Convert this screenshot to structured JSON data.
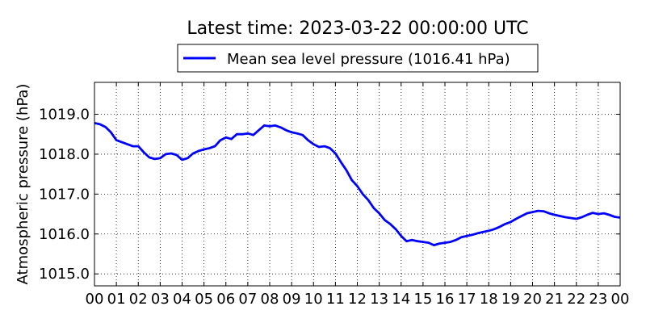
{
  "chart_data": {
    "type": "line",
    "title": "Latest time: 2023-03-22 00:00:00 UTC",
    "ylabel": "Atmospheric pressure (hPa)",
    "xlabel": "",
    "xlim": [
      0,
      24
    ],
    "ylim": [
      1014.7,
      1019.8
    ],
    "grid": true,
    "legend_position": "top-center",
    "x_tick_labels": [
      "00",
      "01",
      "02",
      "03",
      "04",
      "05",
      "06",
      "07",
      "08",
      "09",
      "10",
      "11",
      "12",
      "13",
      "14",
      "15",
      "16",
      "17",
      "18",
      "19",
      "20",
      "21",
      "22",
      "23",
      "00"
    ],
    "y_ticks": [
      1015.0,
      1016.0,
      1017.0,
      1018.0,
      1019.0
    ],
    "y_tick_labels": [
      "1015.0",
      "1016.0",
      "1017.0",
      "1018.0",
      "1019.0"
    ],
    "series": [
      {
        "name": "Mean sea level pressure (1016.41 hPa)",
        "color": "#0000ff",
        "x": [
          0,
          0.25,
          0.5,
          0.75,
          1,
          1.25,
          1.5,
          1.75,
          2,
          2.25,
          2.5,
          2.75,
          3,
          3.25,
          3.5,
          3.75,
          4,
          4.25,
          4.5,
          4.75,
          5,
          5.25,
          5.5,
          5.75,
          6,
          6.25,
          6.5,
          6.75,
          7,
          7.25,
          7.5,
          7.75,
          8,
          8.25,
          8.5,
          8.75,
          9,
          9.25,
          9.5,
          9.75,
          10,
          10.25,
          10.5,
          10.75,
          11,
          11.25,
          11.5,
          11.75,
          12,
          12.25,
          12.5,
          12.75,
          13,
          13.25,
          13.5,
          13.75,
          14,
          14.25,
          14.5,
          14.75,
          15,
          15.25,
          15.5,
          15.75,
          16,
          16.25,
          16.5,
          16.75,
          17,
          17.25,
          17.5,
          17.75,
          18,
          18.25,
          18.5,
          18.75,
          19,
          19.25,
          19.5,
          19.75,
          20,
          20.25,
          20.5,
          20.75,
          21,
          21.25,
          21.5,
          21.75,
          22,
          22.25,
          22.5,
          22.75,
          23,
          23.25,
          23.5,
          23.75,
          24
        ],
        "values": [
          1018.78,
          1018.75,
          1018.68,
          1018.55,
          1018.35,
          1018.3,
          1018.25,
          1018.2,
          1018.2,
          1018.05,
          1017.92,
          1017.88,
          1017.9,
          1018.0,
          1018.02,
          1017.98,
          1017.86,
          1017.9,
          1018.02,
          1018.08,
          1018.12,
          1018.15,
          1018.2,
          1018.35,
          1018.42,
          1018.38,
          1018.5,
          1018.5,
          1018.52,
          1018.48,
          1018.6,
          1018.72,
          1018.7,
          1018.72,
          1018.67,
          1018.6,
          1018.55,
          1018.52,
          1018.48,
          1018.35,
          1018.25,
          1018.18,
          1018.2,
          1018.15,
          1018.02,
          1017.8,
          1017.6,
          1017.35,
          1017.2,
          1017.0,
          1016.85,
          1016.65,
          1016.52,
          1016.35,
          1016.25,
          1016.12,
          1015.95,
          1015.82,
          1015.85,
          1015.82,
          1015.8,
          1015.78,
          1015.72,
          1015.76,
          1015.78,
          1015.8,
          1015.85,
          1015.92,
          1015.95,
          1015.98,
          1016.02,
          1016.05,
          1016.08,
          1016.12,
          1016.18,
          1016.25,
          1016.3,
          1016.38,
          1016.45,
          1016.52,
          1016.55,
          1016.58,
          1016.57,
          1016.52,
          1016.48,
          1016.45,
          1016.42,
          1016.4,
          1016.38,
          1016.42,
          1016.48,
          1016.53,
          1016.5,
          1016.52,
          1016.48,
          1016.43,
          1016.41
        ]
      }
    ]
  }
}
